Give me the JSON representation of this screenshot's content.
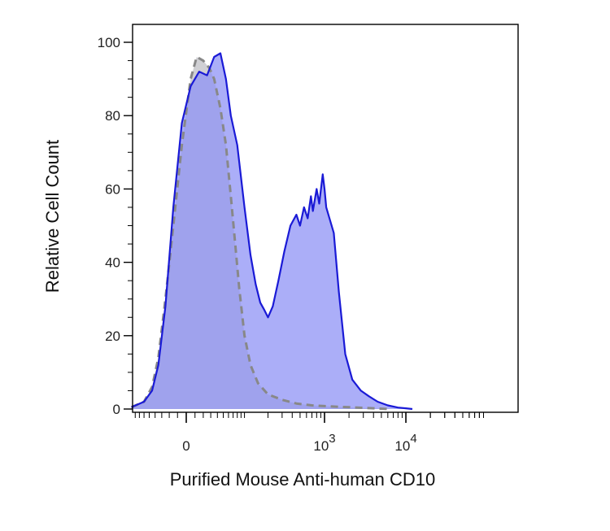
{
  "chart_data": {
    "type": "area",
    "title": "",
    "xlabel": "Purified Mouse Anti-human CD10",
    "ylabel": "Relative Cell Count",
    "x_scale": "biexponential",
    "ylim": [
      0,
      100
    ],
    "y_ticks": [
      0,
      20,
      40,
      60,
      80,
      100
    ],
    "x_ticks": [
      {
        "value": 0,
        "base": "0",
        "exp": ""
      },
      {
        "value": 1000,
        "base": "10",
        "exp": "3"
      },
      {
        "value": 10000,
        "base": "10",
        "exp": "4"
      }
    ],
    "grid": false,
    "legend": "none",
    "series": [
      {
        "style": "isotype",
        "color": "#888888",
        "fill": "#c8c8cc",
        "dashed": true,
        "x": [
          -90,
          -60,
          -45,
          -35,
          -25,
          -15,
          -5,
          5,
          12,
          20,
          28,
          35,
          45,
          55,
          65,
          75,
          85,
          100,
          120,
          150,
          200,
          300,
          450,
          700,
          1000,
          1500,
          2000,
          3000,
          4000,
          6000
        ],
        "y": [
          0.5,
          2,
          6,
          14,
          30,
          50,
          72,
          90,
          96,
          95,
          93,
          90,
          82,
          72,
          58,
          45,
          33,
          20,
          12,
          7,
          4,
          2.5,
          1.5,
          1,
          0.8,
          0.6,
          0.5,
          0.3,
          0.2,
          0
        ]
      },
      {
        "style": "cd10",
        "color": "#1a1ad6",
        "fill": "#8f93f5",
        "dashed": false,
        "x": [
          -90,
          -60,
          -45,
          -35,
          -25,
          -15,
          -5,
          5,
          15,
          25,
          35,
          45,
          55,
          65,
          80,
          100,
          120,
          140,
          160,
          180,
          200,
          230,
          270,
          320,
          380,
          450,
          500,
          560,
          620,
          680,
          720,
          800,
          860,
          950,
          1000,
          1050,
          1150,
          1300,
          1500,
          1800,
          2200,
          2800,
          3500,
          4500,
          6000,
          8000,
          10000,
          12000
        ],
        "y": [
          0.5,
          2,
          5,
          12,
          28,
          55,
          78,
          88,
          92,
          91,
          96,
          97,
          90,
          80,
          72,
          55,
          42,
          34,
          29,
          27,
          25,
          28,
          35,
          43,
          50,
          53,
          50,
          55,
          52,
          58,
          54,
          60,
          56,
          64,
          60,
          55,
          52,
          48,
          32,
          15,
          8,
          5,
          3.5,
          2,
          1,
          0.4,
          0.2,
          0
        ]
      }
    ]
  }
}
